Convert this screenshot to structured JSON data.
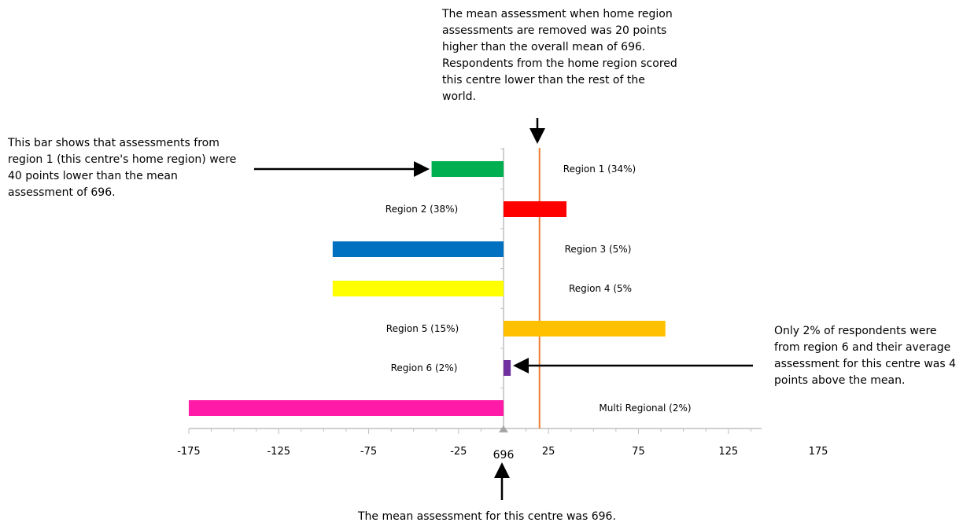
{
  "annotations": {
    "top": "The mean assessment when home region assessments are removed was 20 points higher than the overall mean of 696. Respondents from the home region scored this centre lower than the rest of the world.",
    "left": "This bar shows that assessments from region 1 (this centre's home region) were 40 points lower than the mean assessment of 696.",
    "right": "Only 2% of respondents were from region 6 and their average assessment for this centre was 4 points above the mean.",
    "bottom": "The mean assessment for this centre was 696."
  },
  "chart_data": {
    "type": "bar",
    "orientation": "horizontal",
    "center_label": "696",
    "categories": [
      "Region 1 (34%)",
      "Region 2 (38%)",
      "Region 3 (5%)",
      "Region 4 (5%",
      "Region 5 (15%)",
      "Region 6 (2%)",
      "Multi Regional (2%)"
    ],
    "values": [
      -40,
      35,
      -95,
      -95,
      90,
      4,
      -175
    ],
    "colors": [
      "#00b050",
      "#ff0000",
      "#0070c0",
      "#ffff00",
      "#ffc000",
      "#7030a0",
      "#ff1aa8"
    ],
    "reference_line": {
      "value": 20,
      "color": "#ed7d31"
    },
    "xlim": [
      -175,
      175
    ],
    "x_ticks": [
      -175,
      -125,
      -75,
      -25,
      25,
      75,
      125,
      175
    ]
  }
}
